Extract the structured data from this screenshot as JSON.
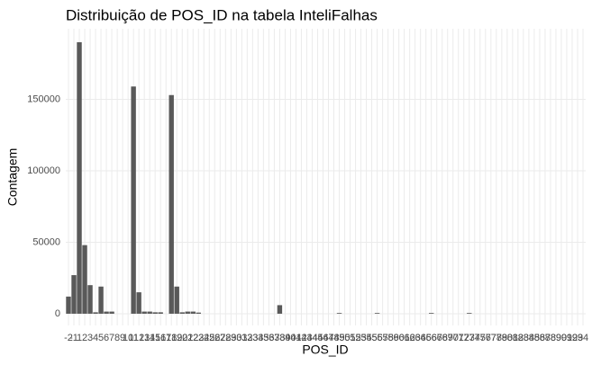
{
  "chart_data": {
    "type": "bar",
    "title": "Distribuição de POS_ID na tabela InteliFalhas",
    "x_label": "POS_ID",
    "y_label": "Contagem",
    "categories": [
      "-2",
      "-1",
      "1",
      "2",
      "3",
      "4",
      "5",
      "6",
      "7",
      "8",
      "9",
      "10",
      "11",
      "12",
      "13",
      "14",
      "15",
      "16",
      "17",
      "18",
      "19",
      "20",
      "21",
      "22",
      "23",
      "24",
      "25",
      "26",
      "27",
      "28",
      "29",
      "30",
      "31",
      "32",
      "33",
      "34",
      "35",
      "36",
      "37",
      "38",
      "39",
      "40",
      "41",
      "42",
      "43",
      "44",
      "45",
      "46",
      "47",
      "48",
      "49",
      "50",
      "51",
      "52",
      "53",
      "54",
      "55",
      "56",
      "57",
      "58",
      "59",
      "60",
      "61",
      "62",
      "63",
      "64",
      "65",
      "66",
      "67",
      "68",
      "69",
      "70",
      "71",
      "72",
      "73",
      "74",
      "75",
      "76",
      "77",
      "78",
      "79",
      "80",
      "81",
      "82",
      "83",
      "84",
      "85",
      "86",
      "87",
      "88",
      "89",
      "90",
      "91",
      "92",
      "93",
      "94"
    ],
    "values": [
      12000,
      27000,
      190000,
      48000,
      20000,
      1000,
      19000,
      1500,
      1500,
      0,
      0,
      0,
      159000,
      15000,
      1500,
      1500,
      1000,
      1000,
      0,
      153000,
      19000,
      1000,
      1500,
      1500,
      800,
      0,
      0,
      0,
      0,
      0,
      0,
      0,
      0,
      0,
      0,
      0,
      0,
      0,
      0,
      6000,
      0,
      0,
      0,
      0,
      0,
      0,
      0,
      0,
      0,
      0,
      500,
      0,
      0,
      0,
      0,
      0,
      0,
      500,
      0,
      0,
      0,
      0,
      0,
      0,
      0,
      0,
      0,
      500,
      0,
      0,
      0,
      0,
      0,
      0,
      500,
      0,
      0,
      0,
      0,
      0,
      0,
      0,
      0,
      0,
      0,
      0,
      0,
      0,
      0,
      0,
      0,
      0,
      0,
      0,
      0,
      0
    ],
    "color": "#595959",
    "ylim": [
      -8200,
      199400
    ],
    "yticks": [
      0,
      50000,
      100000,
      150000
    ],
    "grid": true
  }
}
